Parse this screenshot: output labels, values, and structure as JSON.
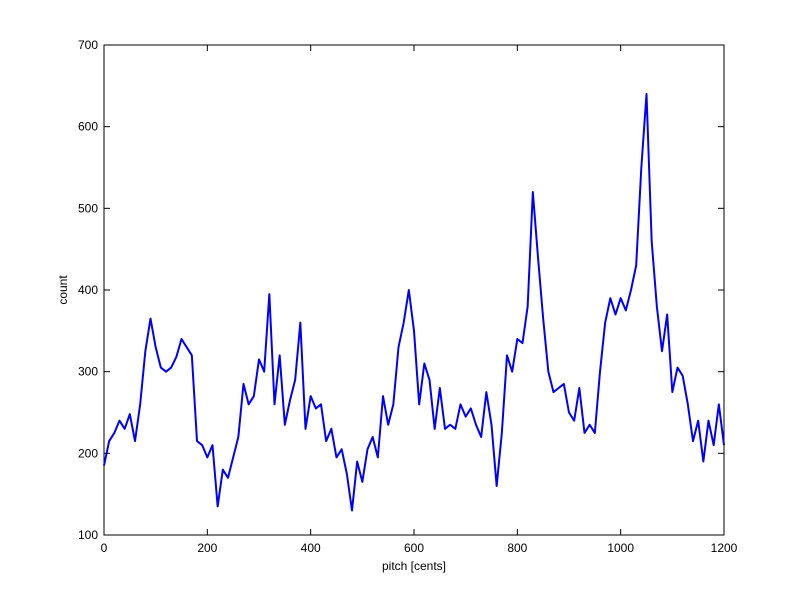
{
  "chart_data": {
    "type": "line",
    "xlabel": "pitch [cents]",
    "ylabel": "count",
    "x": [
      0,
      10,
      20,
      30,
      40,
      50,
      60,
      70,
      80,
      90,
      100,
      110,
      120,
      130,
      140,
      150,
      160,
      170,
      180,
      190,
      200,
      210,
      220,
      230,
      240,
      250,
      260,
      270,
      280,
      290,
      300,
      310,
      320,
      330,
      340,
      350,
      360,
      370,
      380,
      390,
      400,
      410,
      420,
      430,
      440,
      450,
      460,
      470,
      480,
      490,
      500,
      510,
      520,
      530,
      540,
      550,
      560,
      570,
      580,
      590,
      600,
      610,
      620,
      630,
      640,
      650,
      660,
      670,
      680,
      690,
      700,
      710,
      720,
      730,
      740,
      750,
      760,
      770,
      780,
      790,
      800,
      810,
      820,
      830,
      840,
      850,
      860,
      870,
      880,
      890,
      900,
      910,
      920,
      930,
      940,
      950,
      960,
      970,
      980,
      990,
      1000,
      1010,
      1020,
      1030,
      1040,
      1050,
      1060,
      1070,
      1080,
      1090,
      1100,
      1110,
      1120,
      1130,
      1140,
      1150,
      1160,
      1170,
      1180,
      1190,
      1200
    ],
    "series": [
      {
        "name": "count",
        "color": "#0000ff",
        "values": [
          185,
          215,
          225,
          240,
          230,
          248,
          215,
          260,
          325,
          365,
          330,
          305,
          300,
          305,
          318,
          340,
          330,
          320,
          215,
          210,
          195,
          210,
          135,
          180,
          170,
          195,
          220,
          285,
          260,
          270,
          315,
          300,
          395,
          260,
          320,
          235,
          265,
          290,
          360,
          230,
          270,
          255,
          260,
          215,
          230,
          195,
          205,
          175,
          130,
          190,
          165,
          205,
          220,
          195,
          270,
          235,
          260,
          330,
          360,
          400,
          350,
          260,
          310,
          290,
          230,
          280,
          230,
          235,
          230,
          260,
          245,
          255,
          235,
          220,
          275,
          235,
          160,
          225,
          320,
          300,
          340,
          335,
          380,
          520,
          440,
          365,
          300,
          275,
          280,
          285,
          250,
          240,
          280,
          225,
          235,
          225,
          300,
          360,
          390,
          370,
          390,
          375,
          400,
          430,
          550,
          640,
          460,
          380,
          325,
          370,
          275,
          305,
          295,
          260,
          215,
          240,
          190,
          240,
          210,
          260,
          210
        ]
      }
    ],
    "xlim": [
      0,
      1200
    ],
    "ylim": [
      100,
      700
    ],
    "xticks": [
      0,
      200,
      400,
      600,
      800,
      1000,
      1200
    ],
    "yticks": [
      100,
      200,
      300,
      400,
      500,
      600,
      700
    ],
    "grid": false
  }
}
